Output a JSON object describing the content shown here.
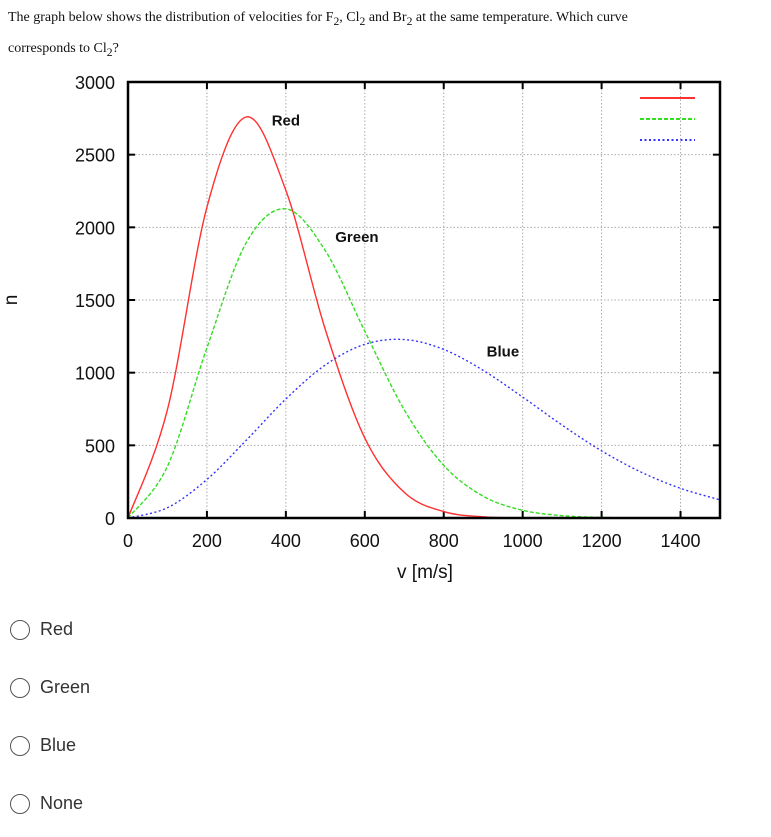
{
  "question": {
    "line1_parts": [
      "The graph below shows the distribution of velocities for F",
      "2",
      ", Cl",
      "2",
      " and Br",
      "2",
      " at the same temperature. Which curve"
    ],
    "line2_parts": [
      "corresponds to Cl",
      "2",
      "?"
    ]
  },
  "chart_data": {
    "type": "line",
    "xlabel": "v [m/s]",
    "ylabel": "n",
    "xlim": [
      0,
      1500
    ],
    "ylim": [
      0,
      3000
    ],
    "xticks": [
      0,
      200,
      400,
      600,
      800,
      1000,
      1200,
      1400
    ],
    "yticks": [
      0,
      500,
      1000,
      1500,
      2000,
      2500,
      3000
    ],
    "grid": true,
    "legend": "top-right",
    "x": [
      0,
      100,
      200,
      300,
      400,
      500,
      600,
      700,
      800,
      900,
      1000,
      1100,
      1200,
      1300,
      1400,
      1500
    ],
    "series": [
      {
        "name": "Red",
        "color": "#ff3030",
        "style": "solid",
        "values": [
          0,
          746,
          2139,
          2760,
          2254,
          1296,
          550,
          176,
          44,
          8,
          1,
          0,
          0,
          0,
          0,
          0
        ]
      },
      {
        "name": "Green",
        "color": "#33dd22",
        "style": "dashed",
        "values": [
          0,
          356,
          1171,
          1896,
          2127,
          1839,
          1285,
          744,
          362,
          150,
          53,
          16,
          4,
          1,
          0,
          0
        ]
      },
      {
        "name": "Blue",
        "color": "#3333ff",
        "style": "dotted",
        "values": [
          0,
          71,
          265,
          536,
          819,
          1053,
          1195,
          1228,
          1160,
          1016,
          832,
          639,
          462,
          316,
          204,
          125
        ]
      }
    ],
    "annotations": [
      {
        "text": "Red",
        "x": 400,
        "y": 2700
      },
      {
        "text": "Green",
        "x": 580,
        "y": 1900
      },
      {
        "text": "Blue",
        "x": 950,
        "y": 1110
      }
    ]
  },
  "options": [
    {
      "label": "Red"
    },
    {
      "label": "Green"
    },
    {
      "label": "Blue"
    },
    {
      "label": "None"
    }
  ]
}
